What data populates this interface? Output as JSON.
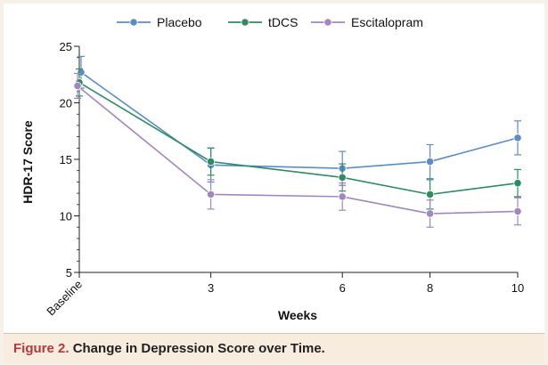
{
  "chart_data": {
    "type": "line",
    "xlabel": "Weeks",
    "ylabel": "HDR-17 Score",
    "x_ticks": [
      "Baseline",
      "3",
      "6",
      "8",
      "10"
    ],
    "x_values": [
      0,
      3,
      6,
      8,
      10
    ],
    "y_ticks": [
      5,
      10,
      15,
      20,
      25
    ],
    "ylim": [
      5,
      25
    ],
    "legend_position": "top",
    "series": [
      {
        "name": "Placebo",
        "color": "#5b8cc5",
        "marker": "circle",
        "values": [
          22.7,
          14.5,
          14.2,
          14.8,
          16.9
        ],
        "err": [
          1.4,
          1.5,
          1.5,
          1.5,
          1.5
        ]
      },
      {
        "name": "tDCS",
        "color": "#2e8b62",
        "marker": "circle",
        "values": [
          21.8,
          14.8,
          13.4,
          11.9,
          12.9
        ],
        "err": [
          1.2,
          1.2,
          1.2,
          1.3,
          1.2
        ]
      },
      {
        "name": "Escitalopram",
        "color": "#a287bf",
        "marker": "circle",
        "values": [
          21.5,
          11.9,
          11.7,
          10.2,
          10.4
        ],
        "err": [
          1.1,
          1.3,
          1.2,
          1.2,
          1.2
        ]
      }
    ]
  },
  "caption": {
    "label": "Figure 2.",
    "text": "Change in Depression Score over Time."
  }
}
